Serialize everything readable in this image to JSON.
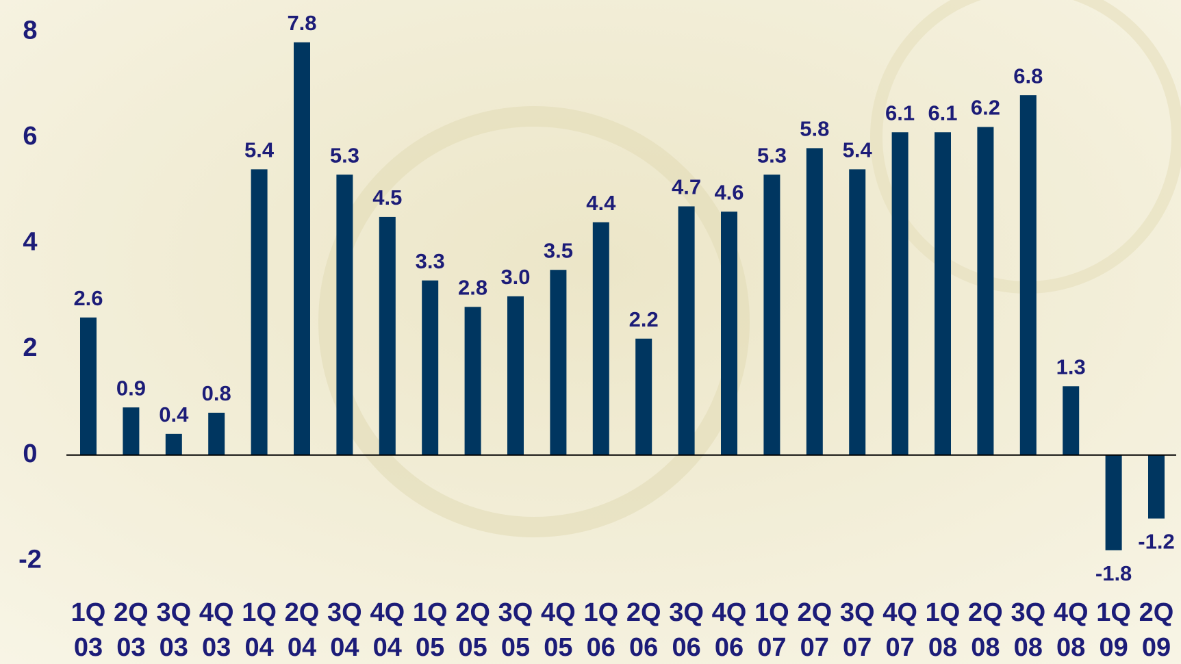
{
  "chart_data": {
    "type": "bar",
    "categories": [
      "1Q 03",
      "2Q 03",
      "3Q 03",
      "4Q 03",
      "1Q 04",
      "2Q 04",
      "3Q 04",
      "4Q 04",
      "1Q 05",
      "2Q 05",
      "3Q 05",
      "4Q 05",
      "1Q 06",
      "2Q 06",
      "3Q 06",
      "4Q 06",
      "1Q 07",
      "2Q 07",
      "3Q 07",
      "4Q 07",
      "1Q 08",
      "2Q 08",
      "3Q 08",
      "4Q 08",
      "1Q 09",
      "2Q 09"
    ],
    "values": [
      2.6,
      0.9,
      0.4,
      0.8,
      5.4,
      7.8,
      5.3,
      4.5,
      3.3,
      2.8,
      3.0,
      3.5,
      4.4,
      2.2,
      4.7,
      4.6,
      5.3,
      5.8,
      5.4,
      6.1,
      6.1,
      6.2,
      6.8,
      1.3,
      -1.8,
      -1.2
    ],
    "value_labels": [
      "2.6",
      "0.9",
      "0.4",
      "0.8",
      "5.4",
      "7.8",
      "5.3",
      "4.5",
      "3.3",
      "2.8",
      "3.0",
      "3.5",
      "4.4",
      "2.2",
      "4.7",
      "4.6",
      "5.3",
      "5.8",
      "5.4",
      "6.1",
      "6.1",
      "6.2",
      "6.8",
      "1.3",
      "-1.8",
      "-1.2"
    ],
    "color": "#003660",
    "ylim": [
      -2.5,
      8.6
    ],
    "yticks": [
      -2,
      0,
      2,
      4,
      6,
      8
    ],
    "grid": false
  }
}
